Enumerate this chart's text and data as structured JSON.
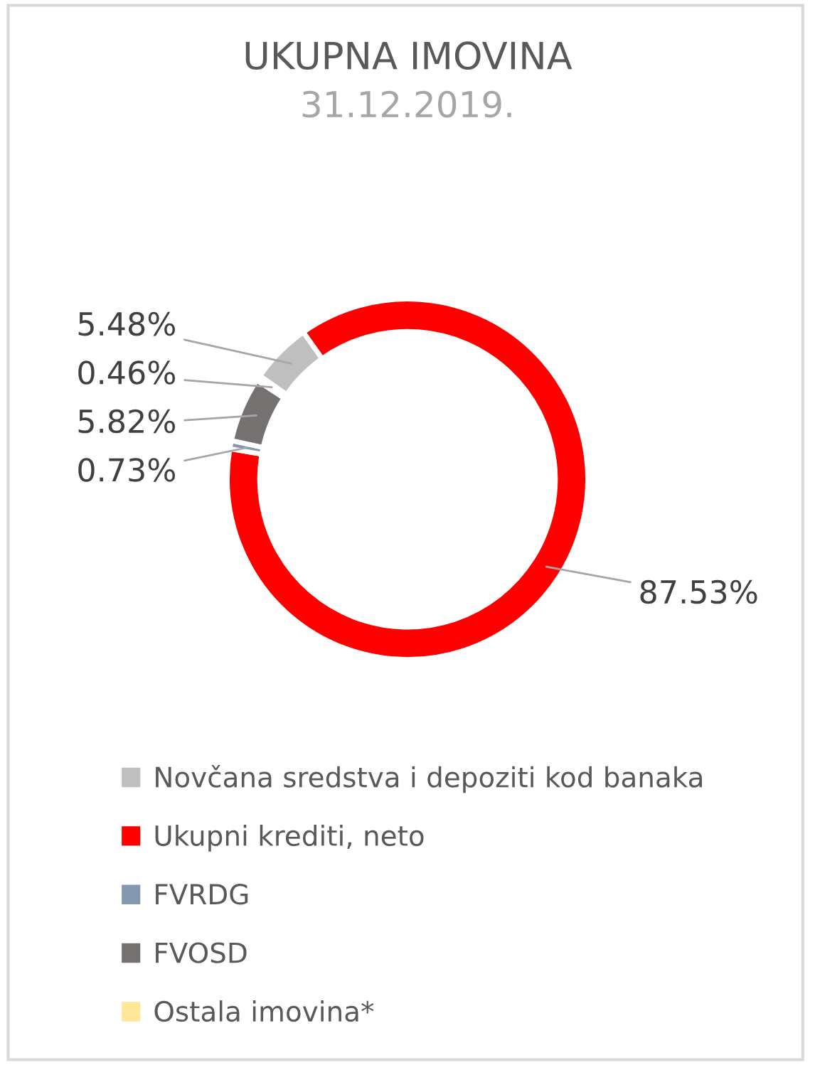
{
  "chart_data": {
    "type": "donut",
    "title": "UKUPNA IMOVINA",
    "subtitle": "31.12.2019.",
    "categories": [
      "Novčana sredstva i depoziti kod banaka",
      "Ukupni krediti, neto",
      "FVRDG",
      "FVOSD",
      "Ostala imovina*"
    ],
    "values": [
      5.48,
      87.53,
      0.73,
      5.82,
      0.46
    ],
    "colors": [
      "#bfbfbf",
      "#ff0000",
      "#8497b0",
      "#767171",
      "#ffe699"
    ],
    "value_labels": [
      "5.48%",
      "87.53%",
      "0.73%",
      "5.82%",
      "0.46%"
    ],
    "legend": "bottom"
  }
}
